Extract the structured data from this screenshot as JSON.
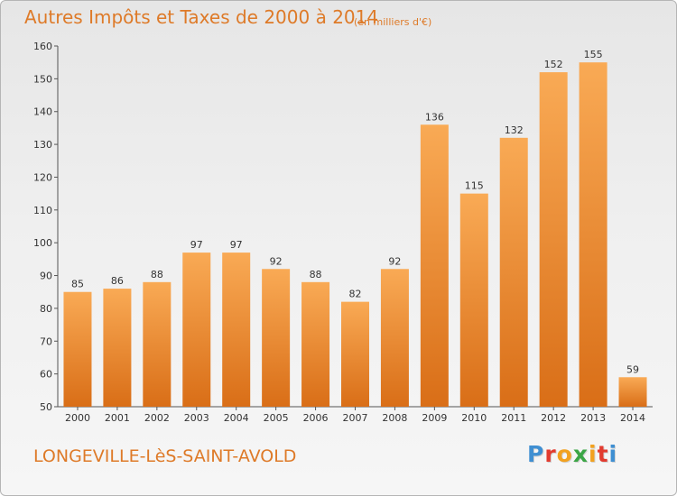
{
  "title": "Autres Impôts et Taxes de 2000 à 2014",
  "subtitle": "(en milliers d'€)",
  "town": "LONGEVILLE-LèS-SAINT-AVOLD",
  "logo": {
    "letters": [
      "P",
      "r",
      "o",
      "x",
      "i",
      "t",
      "i"
    ],
    "colors": [
      "#3f8fd2",
      "#e23b2f",
      "#f2a11f",
      "#3aa545",
      "#f2a11f",
      "#e23b2f",
      "#3f8fd2"
    ]
  },
  "colors": {
    "bar_top": "#f9aa55",
    "bar_bottom": "#d96e17",
    "accent": "#de7a28"
  },
  "chart_data": {
    "type": "bar",
    "title": "Autres Impôts et Taxes de 2000 à 2014",
    "subtitle": "(en milliers d'€)",
    "categories": [
      "2000",
      "2001",
      "2002",
      "2003",
      "2004",
      "2005",
      "2006",
      "2007",
      "2008",
      "2009",
      "2010",
      "2011",
      "2012",
      "2013",
      "2014"
    ],
    "values": [
      85,
      86,
      88,
      97,
      97,
      92,
      88,
      82,
      92,
      136,
      115,
      132,
      152,
      155,
      59
    ],
    "ylim": [
      50,
      160
    ],
    "yticks": [
      50,
      60,
      70,
      80,
      90,
      100,
      110,
      120,
      130,
      140,
      150,
      160
    ],
    "grid": false,
    "legend": "none"
  }
}
